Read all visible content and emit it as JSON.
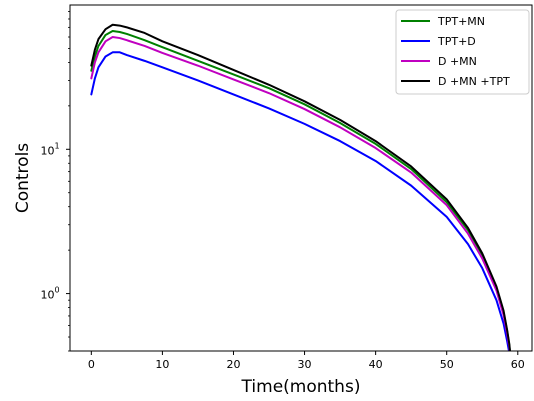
{
  "chart_data": {
    "type": "line",
    "xlabel": "Time(months)",
    "ylabel": "Controls",
    "xlim": [
      -3,
      62
    ],
    "ylim": [
      0.4,
      100
    ],
    "yscale": "log",
    "xticks": [
      "0",
      "10",
      "20",
      "30",
      "40",
      "50",
      "60"
    ],
    "yticks": [
      {
        "base": "10",
        "exp": "0"
      },
      {
        "base": "10",
        "exp": "1"
      }
    ],
    "legend_position": "top-right",
    "x": [
      0,
      0.5,
      1,
      2,
      3,
      4,
      5,
      7.5,
      10,
      15,
      20,
      25,
      30,
      35,
      40,
      45,
      50,
      53,
      55,
      57,
      58,
      58.5,
      58.8,
      59
    ],
    "series": [
      {
        "name": "TPT+MN",
        "color": "#008000",
        "values": [
          35,
          44,
          52,
          62,
          66,
          65,
          63,
          57,
          51,
          41,
          33,
          26.5,
          20.5,
          15.2,
          10.9,
          7.3,
          4.3,
          2.75,
          1.85,
          1.1,
          0.74,
          0.55,
          0.44,
          0.35
        ]
      },
      {
        "name": "TPT+D",
        "color": "#0000ff",
        "values": [
          24,
          31,
          37,
          44,
          47,
          47,
          45,
          41,
          37,
          30,
          24,
          19.2,
          15,
          11.4,
          8.3,
          5.6,
          3.4,
          2.2,
          1.5,
          0.9,
          0.62,
          0.47,
          0.39,
          0.34
        ]
      },
      {
        "name": "D +MN",
        "color": "#c000c0",
        "values": [
          31,
          40,
          47,
          56,
          60,
          59,
          57,
          52,
          46.5,
          38,
          30.5,
          24.5,
          19,
          14.2,
          10.2,
          6.9,
          4.1,
          2.6,
          1.75,
          1.05,
          0.71,
          0.53,
          0.43,
          0.35
        ]
      },
      {
        "name": "D +MN +TPT",
        "color": "#000000",
        "values": [
          38,
          49,
          58,
          68,
          73,
          72,
          70,
          64,
          56,
          45,
          35.5,
          28,
          21.5,
          16,
          11.4,
          7.6,
          4.5,
          2.85,
          1.9,
          1.12,
          0.76,
          0.56,
          0.45,
          0.36
        ]
      }
    ]
  }
}
